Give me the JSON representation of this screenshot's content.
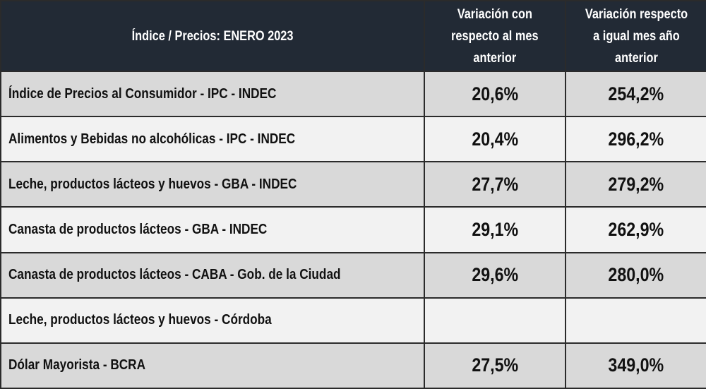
{
  "header": {
    "col1": "Índice / Precios:  ENERO 2023",
    "col2": [
      "Variación con",
      "respecto al mes",
      "anterior"
    ],
    "col3": [
      "Variación respecto",
      "a igual mes año",
      "anterior"
    ]
  },
  "rows": [
    {
      "label": "Índice de Precios al Consumidor - IPC - INDEC",
      "monthly": "20,6%",
      "yearly": "254,2%"
    },
    {
      "label": "Alimentos y Bebidas no alcohólicas - IPC - INDEC",
      "monthly": "20,4%",
      "yearly": "296,2%"
    },
    {
      "label": "Leche, productos lácteos y huevos - GBA - INDEC",
      "monthly": "27,7%",
      "yearly": "279,2%"
    },
    {
      "label": "Canasta de productos lácteos - GBA - INDEC",
      "monthly": "29,1%",
      "yearly": "262,9%"
    },
    {
      "label": "Canasta de productos lácteos - CABA - Gob. de la Ciudad",
      "monthly": "29,6%",
      "yearly": "280,0%"
    },
    {
      "label": "Leche, productos lácteos y huevos - Córdoba",
      "monthly": "",
      "yearly": ""
    },
    {
      "label": "Dólar Mayorista - BCRA",
      "monthly": "27,5%",
      "yearly": "349,0%"
    }
  ],
  "colors": {
    "header_bg": "#222a35",
    "row_dark": "#d9d9d9",
    "row_light": "#f2f2f2"
  }
}
